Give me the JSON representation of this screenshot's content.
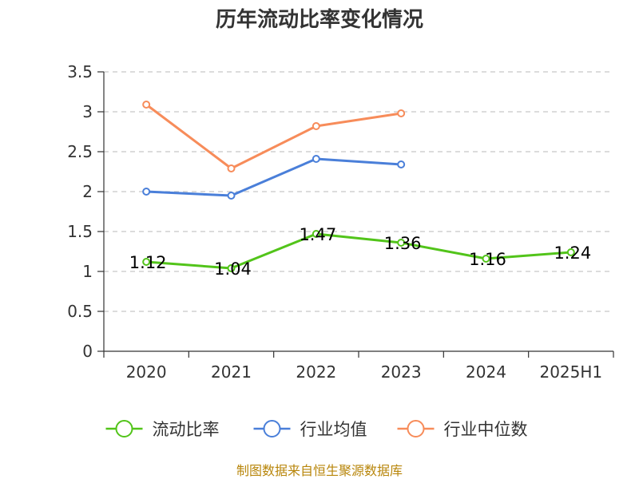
{
  "chart_data": {
    "type": "line",
    "title": "历年流动比率变化情况",
    "categories": [
      "2020",
      "2021",
      "2022",
      "2023",
      "2024",
      "2025H1"
    ],
    "ylim": [
      0,
      3.5
    ],
    "yticks": [
      "0",
      "0.5",
      "1",
      "1.5",
      "2",
      "2.5",
      "3",
      "3.5"
    ],
    "grid": true,
    "legend_position": "bottom",
    "series": [
      {
        "name": "流动比率",
        "color": "#52c41a",
        "values": [
          1.12,
          1.04,
          1.47,
          1.36,
          1.16,
          1.24
        ],
        "labels": [
          "1.12",
          "1.04",
          "1.47",
          "1.36",
          "1.16",
          "1.24"
        ]
      },
      {
        "name": "行业均值",
        "color": "#4a7fd9",
        "values": [
          2.0,
          1.95,
          2.41,
          2.34,
          null,
          null
        ]
      },
      {
        "name": "行业中位数",
        "color": "#f78c5a",
        "values": [
          3.09,
          2.29,
          2.82,
          2.98,
          null,
          null
        ]
      }
    ]
  },
  "footer": {
    "source": "制图数据来自恒生聚源数据库"
  }
}
